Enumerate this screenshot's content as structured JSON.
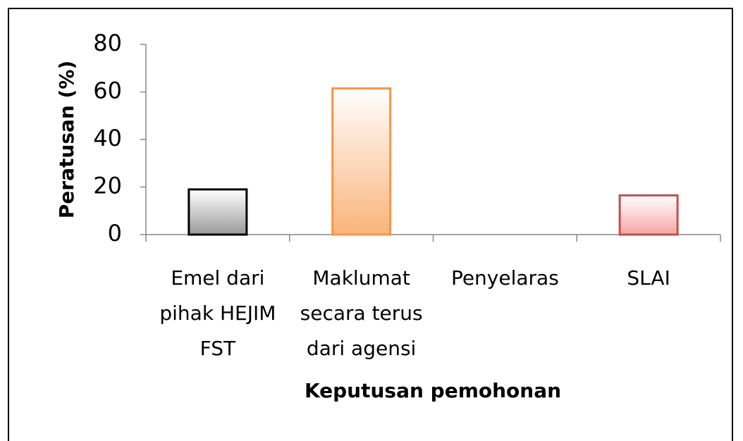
{
  "chart_data": {
    "type": "bar",
    "categories": [
      "Emel dari pihak HEJIM FST",
      "Maklumat secara terus dari agensi",
      "Penyelaras",
      "SLAI"
    ],
    "values": [
      19,
      61.5,
      0,
      16.5
    ],
    "colors": [
      "#9a9a9a",
      "#fab47a",
      "#cccccc",
      "#f7a6a6"
    ],
    "edge_colors": [
      "#000000",
      "#f79646",
      "#999999",
      "#c0504d"
    ],
    "xlabel": "Keputusan pemohonan",
    "ylabel": "Peratusan (%)",
    "ylim": [
      0,
      80
    ],
    "yticks": [
      0,
      20,
      40,
      60,
      80
    ],
    "grid": false
  }
}
